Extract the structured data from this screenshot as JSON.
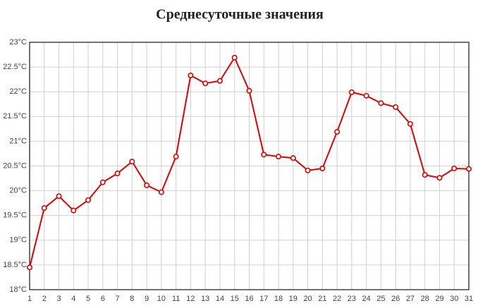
{
  "chart_data": {
    "type": "line",
    "title": "Среднесуточные значения",
    "categories": [
      "1",
      "2",
      "3",
      "4",
      "5",
      "6",
      "7",
      "8",
      "9",
      "10",
      "11",
      "12",
      "13",
      "14",
      "15",
      "16",
      "17",
      "18",
      "19",
      "20",
      "21",
      "22",
      "23",
      "24",
      "25",
      "26",
      "27",
      "28",
      "29",
      "30",
      "31"
    ],
    "series": [
      {
        "color": "#e00000",
        "values": [
          18.45,
          19.65,
          19.89,
          19.6,
          19.81,
          20.17,
          20.35,
          20.59,
          20.11,
          19.97,
          20.69,
          22.33,
          22.17,
          22.22,
          22.69,
          22.02,
          20.73,
          20.69,
          20.66,
          20.41,
          20.45,
          21.19,
          21.99,
          21.92,
          21.77,
          21.69,
          21.35,
          20.32,
          20.26,
          20.45,
          20.44
        ]
      }
    ],
    "ylim": [
      18,
      23
    ],
    "yticks": [
      {
        "value": 18,
        "label": "18°C"
      },
      {
        "value": 18.5,
        "label": "18.5°C"
      },
      {
        "value": 19,
        "label": "19°C"
      },
      {
        "value": 19.5,
        "label": "19.5°C"
      },
      {
        "value": 20,
        "label": "20°C"
      },
      {
        "value": 20.5,
        "label": "20.5°C"
      },
      {
        "value": 21,
        "label": "21°C"
      },
      {
        "value": 21.5,
        "label": "21.5°C"
      },
      {
        "value": 22,
        "label": "22°C"
      },
      {
        "value": 22.5,
        "label": "22.5°C"
      },
      {
        "value": 23,
        "label": "23°C"
      }
    ],
    "grid": true
  }
}
